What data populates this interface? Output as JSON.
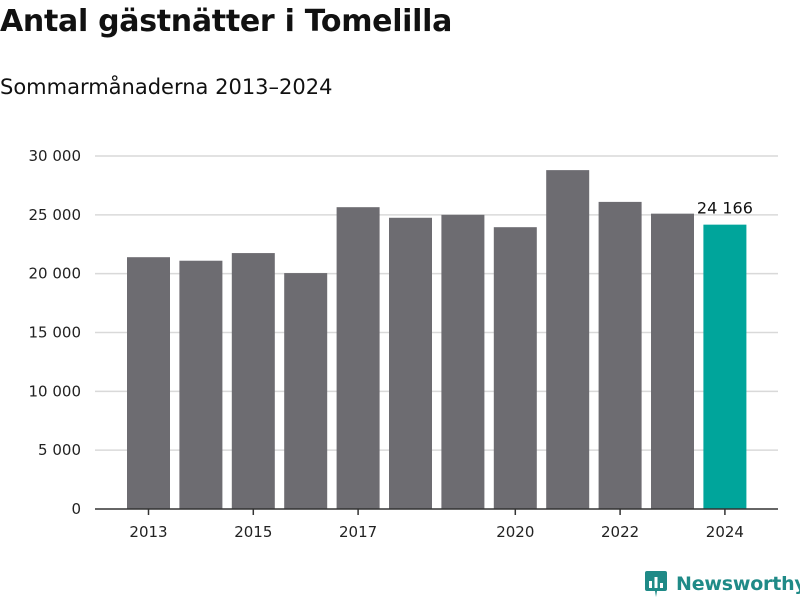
{
  "title": "Antal gästnätter i Tomelilla",
  "subtitle": "Sommarmånaderna 2013–2024",
  "brand": {
    "name": "Newsworthy",
    "icon": "newsworthy-logo-icon",
    "color": "#1f8a87"
  },
  "chart_data": {
    "type": "bar",
    "categories": [
      "2013",
      "2014",
      "2015",
      "2016",
      "2017",
      "2018",
      "2019",
      "2020",
      "2021",
      "2022",
      "2023",
      "2024"
    ],
    "values": [
      21400,
      21100,
      21750,
      20050,
      25650,
      24750,
      25000,
      23950,
      28800,
      26100,
      25100,
      24166
    ],
    "x_tick_labels": [
      "2013",
      "2015",
      "2017",
      "2020",
      "2022",
      "2024"
    ],
    "y_ticks": [
      0,
      5000,
      10000,
      15000,
      20000,
      25000,
      30000
    ],
    "y_tick_labels": [
      "0",
      "5 000",
      "10 000",
      "15 000",
      "20 000",
      "25 000",
      "30 000"
    ],
    "ylim": [
      0,
      30000
    ],
    "xlabel": "",
    "ylabel": "",
    "grid": true,
    "legend": "none",
    "bar_color": "#6d6c71",
    "highlight_color": "#00a59b",
    "highlight_category": "2024",
    "annotations": [
      {
        "category": "2024",
        "text": "24 166"
      }
    ]
  }
}
